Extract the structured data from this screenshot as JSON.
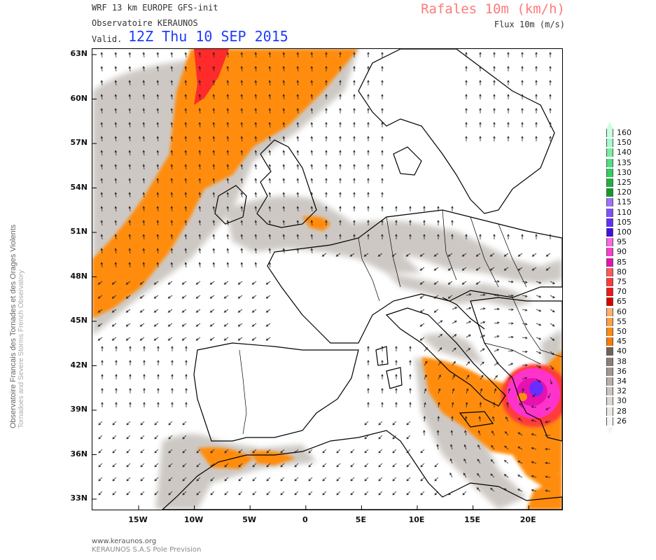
{
  "header": {
    "model_line": "WRF 13 km EUROPE  GFS-init",
    "observatory": "Observatoire KERAUNOS",
    "valid_label": "Valid.",
    "valid_date": "12Z Thu 10 SEP 2015",
    "parameter_title": "Rafales 10m (km/h)",
    "parameter_sub": "Flux 10m (m/s)"
  },
  "side_credit": {
    "line1": "Observatoire Francais des Tornades et des Orages Violents",
    "line2": "Tornadoes and Severe Storms French Observatory"
  },
  "map": {
    "lat_labels": [
      "63N",
      "60N",
      "57N",
      "54N",
      "51N",
      "48N",
      "45N",
      "42N",
      "39N",
      "36N",
      "33N"
    ],
    "lon_labels": [
      "15W",
      "10W",
      "5W",
      "0",
      "5E",
      "10E",
      "15E",
      "20E"
    ],
    "colors": {
      "land_outline": "#000000",
      "gust_40_grey": "#c8c3be",
      "gust_45_orange": "#ff8c00",
      "gust_65_red": "#ff0000",
      "gust_85_magenta": "#ff33cc",
      "gust_100_purple": "#6a2cff"
    }
  },
  "legend": {
    "title": "",
    "entries": [
      {
        "value": "160",
        "color": "#c8ffe0"
      },
      {
        "value": "150",
        "color": "#a0ffc8"
      },
      {
        "value": "140",
        "color": "#78f0a0"
      },
      {
        "value": "135",
        "color": "#50e080"
      },
      {
        "value": "130",
        "color": "#30d060"
      },
      {
        "value": "125",
        "color": "#20b040"
      },
      {
        "value": "120",
        "color": "#149a2c"
      },
      {
        "value": "115",
        "color": "#a070ff"
      },
      {
        "value": "110",
        "color": "#8050ff"
      },
      {
        "value": "105",
        "color": "#6030ff"
      },
      {
        "value": "100",
        "color": "#4010e0"
      },
      {
        "value": "95",
        "color": "#ff66e0"
      },
      {
        "value": "90",
        "color": "#ff3cd0"
      },
      {
        "value": "85",
        "color": "#e810b0"
      },
      {
        "value": "80",
        "color": "#ff5a5a"
      },
      {
        "value": "75",
        "color": "#ff3a3a"
      },
      {
        "value": "70",
        "color": "#f01818"
      },
      {
        "value": "65",
        "color": "#d80000"
      },
      {
        "value": "60",
        "color": "#ffb070"
      },
      {
        "value": "55",
        "color": "#ffa040"
      },
      {
        "value": "50",
        "color": "#ff8c10"
      },
      {
        "value": "45",
        "color": "#ff7a00"
      },
      {
        "value": "40",
        "color": "#6e6258"
      },
      {
        "value": "38",
        "color": "#8a7f76"
      },
      {
        "value": "36",
        "color": "#a29890"
      },
      {
        "value": "34",
        "color": "#b8b0aa"
      },
      {
        "value": "32",
        "color": "#cbc5c0"
      },
      {
        "value": "30",
        "color": "#dcd8d4"
      },
      {
        "value": "28",
        "color": "#eae7e4"
      },
      {
        "value": "26",
        "color": "#f6f4f2"
      }
    ]
  },
  "footer": {
    "website": "www.keraunos.org",
    "company": "KERAUNOS S.A.S Pole Prevision"
  }
}
